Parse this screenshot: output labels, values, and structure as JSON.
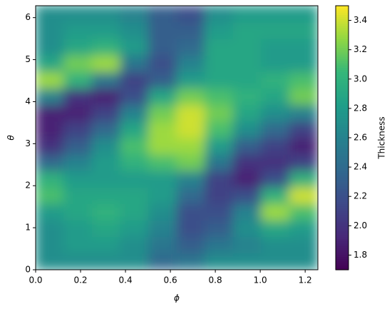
{
  "chart_data": {
    "type": "heatmap",
    "x_label": "ϕ",
    "y_label": "θ",
    "colorbar_label": "Thickness",
    "colormap": "viridis",
    "xlim": [
      0,
      1.2566
    ],
    "ylim": [
      0,
      6.2832
    ],
    "clim": [
      1.7,
      3.5
    ],
    "xticks": [
      {
        "value": 0,
        "label": "0.0"
      },
      0.2,
      0.4,
      0.6,
      0.8,
      {
        "value": 1,
        "label": "1.0"
      },
      1.2
    ],
    "yticks": [
      0,
      1,
      2,
      3,
      4,
      5,
      6
    ],
    "cticks": [
      1.8,
      {
        "value": 2,
        "label": "2.0"
      },
      2.2,
      2.4,
      2.6,
      2.8,
      {
        "value": 3,
        "label": "3.0"
      },
      3.2,
      3.4
    ],
    "z": [
      [
        2.7,
        2.7,
        2.7,
        2.7,
        2.4,
        2.5,
        2.7,
        2.7,
        2.7,
        2.7
      ],
      [
        2.7,
        2.8,
        2.8,
        2.7,
        2.5,
        2.3,
        2.5,
        2.6,
        2.7,
        2.7
      ],
      [
        2.7,
        2.8,
        2.9,
        2.8,
        2.6,
        2.2,
        2.3,
        2.7,
        2.9,
        2.8
      ],
      [
        2.8,
        2.9,
        3.0,
        2.9,
        2.7,
        2.2,
        2.2,
        2.6,
        3.3,
        3.1
      ],
      [
        3.1,
        2.9,
        2.9,
        2.9,
        2.8,
        2.4,
        2.1,
        2.2,
        3.0,
        3.4
      ],
      [
        3.0,
        2.8,
        2.8,
        2.8,
        2.8,
        2.6,
        2.1,
        1.9,
        2.2,
        3.0
      ],
      [
        2.4,
        2.6,
        2.8,
        3.0,
        3.1,
        3.2,
        2.5,
        2.0,
        2.0,
        2.1
      ],
      [
        2.0,
        2.3,
        2.7,
        3.1,
        3.3,
        3.3,
        2.8,
        2.3,
        2.1,
        1.9
      ],
      [
        1.9,
        2.1,
        2.4,
        2.9,
        3.3,
        3.4,
        3.1,
        2.7,
        2.4,
        2.1
      ],
      [
        1.9,
        1.9,
        2.1,
        2.6,
        3.2,
        3.4,
        3.2,
        2.9,
        2.7,
        2.6
      ],
      [
        2.6,
        2.0,
        1.9,
        2.2,
        2.9,
        3.2,
        3.1,
        3.0,
        2.9,
        3.2
      ],
      [
        3.3,
        3.0,
        2.5,
        2.1,
        2.3,
        2.8,
        2.9,
        2.9,
        3.0,
        3.1
      ],
      [
        2.9,
        3.2,
        3.3,
        2.5,
        2.2,
        2.6,
        2.9,
        2.9,
        2.8,
        2.8
      ],
      [
        2.7,
        2.9,
        3.0,
        2.8,
        2.3,
        2.4,
        2.9,
        2.9,
        2.8,
        2.8
      ],
      [
        2.7,
        2.8,
        2.8,
        2.7,
        2.3,
        2.3,
        2.8,
        2.9,
        2.9,
        2.9
      ],
      [
        2.7,
        2.7,
        2.7,
        2.6,
        2.3,
        2.2,
        2.7,
        2.8,
        2.8,
        2.8
      ]
    ]
  }
}
